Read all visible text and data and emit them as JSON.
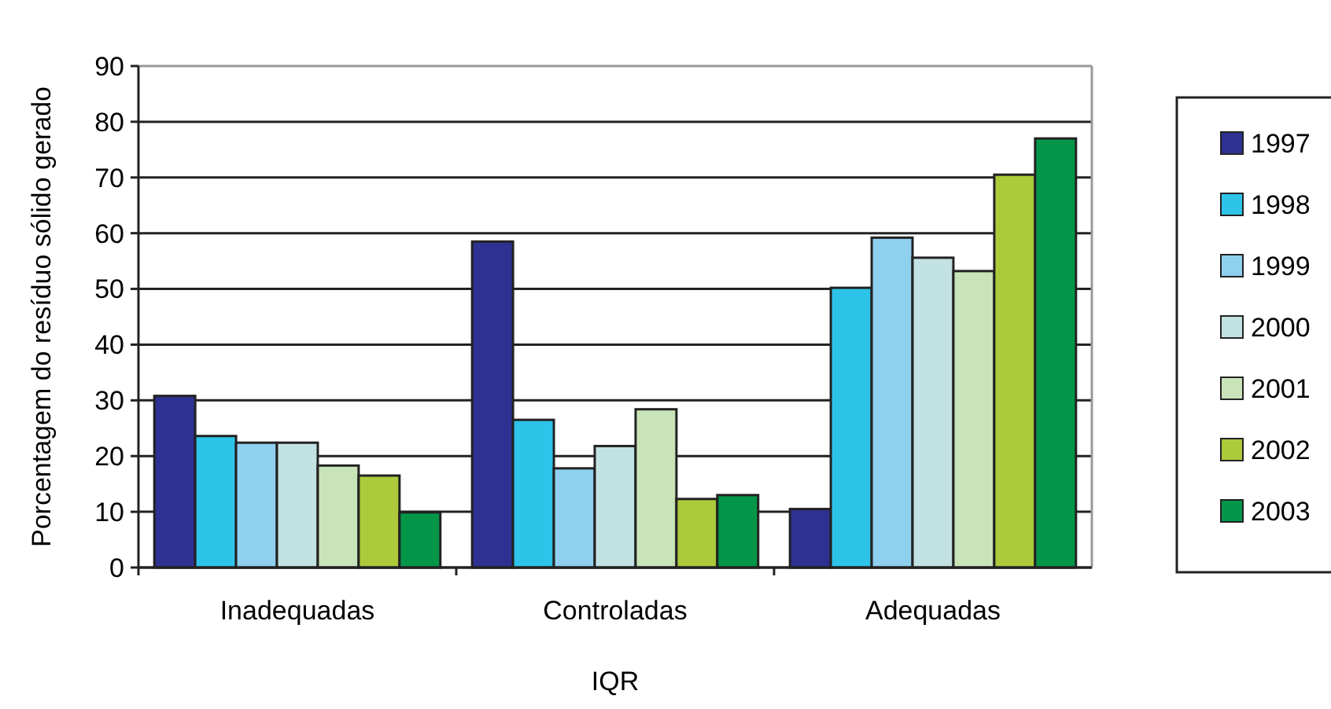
{
  "chart_data": {
    "type": "bar",
    "xlabel": "IQR",
    "ylabel": "Porcentagem do resíduo sólido gerado",
    "categories": [
      "Inadequadas",
      "Controladas",
      "Adequadas"
    ],
    "series": [
      {
        "name": "1997",
        "color": "#2e3192",
        "values": [
          30.8,
          58.5,
          10.5
        ]
      },
      {
        "name": "1998",
        "color": "#2ec4ea",
        "values": [
          23.6,
          26.5,
          50.2
        ]
      },
      {
        "name": "1999",
        "color": "#8fd0ef",
        "values": [
          22.4,
          17.8,
          59.2
        ]
      },
      {
        "name": "2000",
        "color": "#c2e1e2",
        "values": [
          22.4,
          21.8,
          55.6
        ]
      },
      {
        "name": "2001",
        "color": "#c9e4b8",
        "values": [
          18.3,
          28.4,
          53.2
        ]
      },
      {
        "name": "2002",
        "color": "#acca3a",
        "values": [
          16.5,
          12.3,
          70.5
        ]
      },
      {
        "name": "2003",
        "color": "#039649",
        "values": [
          9.9,
          13.0,
          77.0
        ]
      }
    ],
    "ylim": [
      0,
      90
    ],
    "yticks": [
      0,
      10,
      20,
      30,
      40,
      50,
      60,
      70,
      80,
      90
    ],
    "grid": "y",
    "legend": "right"
  }
}
